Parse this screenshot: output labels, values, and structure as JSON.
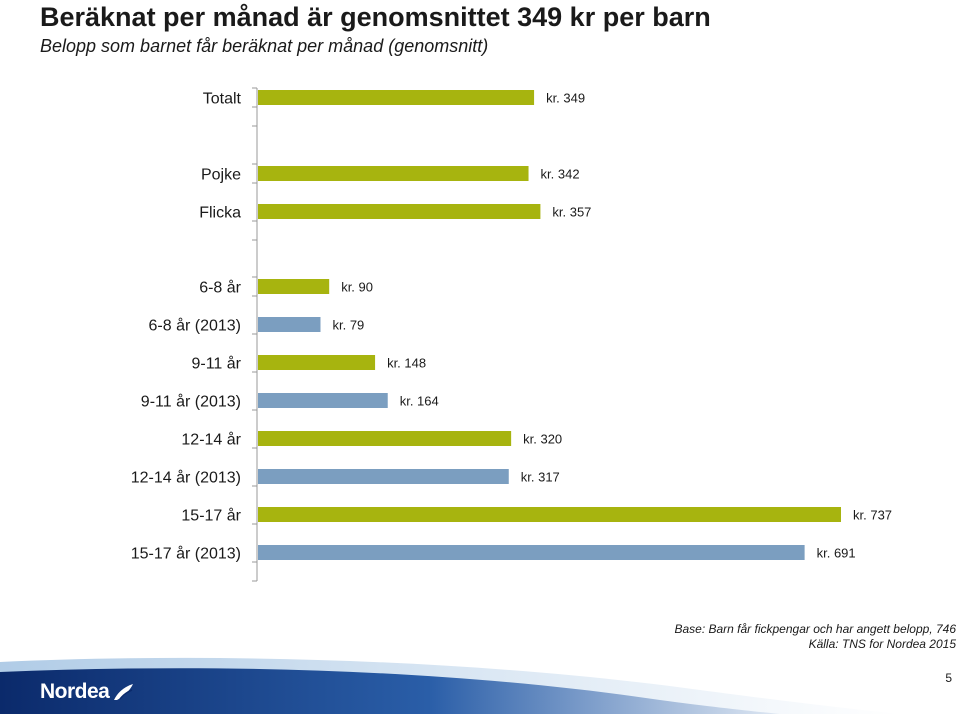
{
  "title": "Beräknat per månad är genomsnittet 349 kr per barn",
  "subtitle": "Belopp som barnet får beräknat per månad (genomsnitt)",
  "colors": {
    "current": "#a7b40f",
    "previous": "#7b9ec0",
    "axis": "#999999",
    "brand": "#0b2a6b"
  },
  "chart_data": {
    "type": "bar",
    "orientation": "horizontal",
    "xlim": [
      0,
      750
    ],
    "grid": false,
    "legend": "none",
    "value_prefix": "kr. ",
    "categories": [
      "Totalt",
      "Pojke",
      "Flicka",
      "6-8 år",
      "6-8 år (2013)",
      "9-11 år",
      "9-11 år (2013)",
      "12-14 år",
      "12-14 år (2013)",
      "15-17 år",
      "15-17 år (2013)"
    ],
    "values": [
      349,
      342,
      357,
      90,
      79,
      148,
      164,
      320,
      317,
      737,
      691
    ],
    "value_labels": [
      "kr. 349",
      "kr. 342",
      "kr. 357",
      "kr. 90",
      "kr. 79",
      "kr. 148",
      "kr. 164",
      "kr. 320",
      "kr. 317",
      "kr. 737",
      "kr. 691"
    ],
    "bar_colors": [
      "current",
      "current",
      "current",
      "current",
      "previous",
      "current",
      "previous",
      "current",
      "previous",
      "current",
      "previous"
    ]
  },
  "footnote": {
    "base": "Base: Barn får fickpengar  och har angett belopp, 746",
    "source": "Källa: TNS for Nordea 2015"
  },
  "brand": {
    "name": "Nordea",
    "logo_icon": "nordea-sail-icon"
  },
  "page_number": "5"
}
